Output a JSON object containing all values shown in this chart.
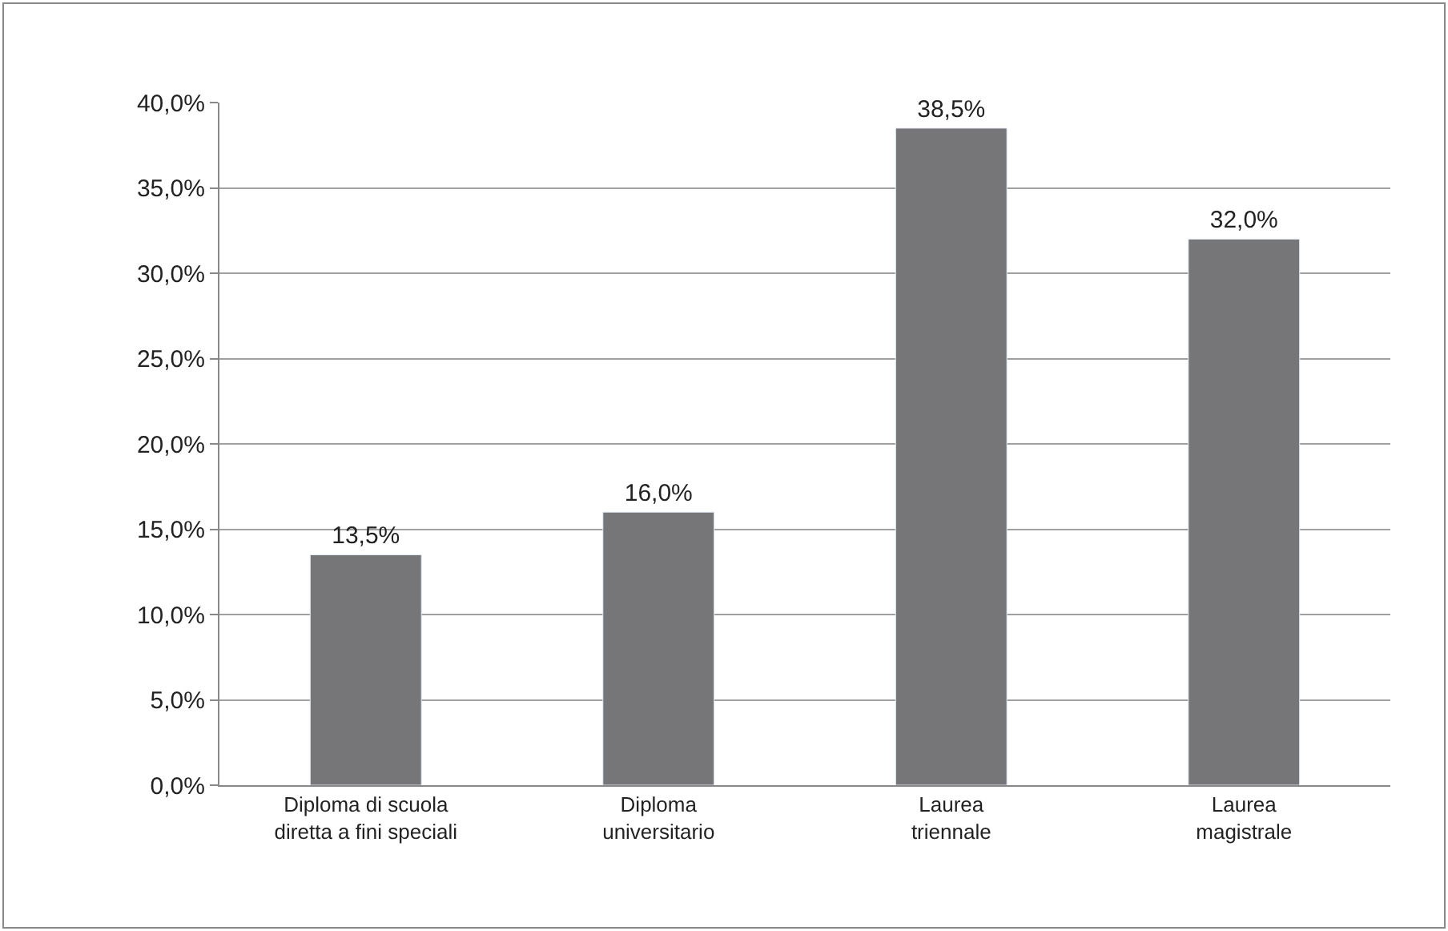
{
  "chart_data": {
    "type": "bar",
    "categories": [
      "Diploma di scuola\ndiretta a fini speciali",
      "Diploma\nuniversitario",
      "Laurea\ntriennale",
      "Laurea\nmagistrale"
    ],
    "values": [
      13.5,
      16.0,
      38.5,
      32.0
    ],
    "value_labels": [
      "13,5%",
      "16,0%",
      "38,5%",
      "32,0%"
    ],
    "color": "#767679",
    "ylim": [
      0,
      40
    ],
    "yticks": [
      {
        "value": 0,
        "label": "0,0%"
      },
      {
        "value": 5,
        "label": "5,0%"
      },
      {
        "value": 10,
        "label": "10,0%"
      },
      {
        "value": 15,
        "label": "15,0%"
      },
      {
        "value": 20,
        "label": "20,0%"
      },
      {
        "value": 25,
        "label": "25,0%"
      },
      {
        "value": 30,
        "label": "30,0%"
      },
      {
        "value": 35,
        "label": "35,0%"
      },
      {
        "value": 40,
        "label": "40,0%"
      }
    ],
    "grid": "y",
    "legend": false
  }
}
